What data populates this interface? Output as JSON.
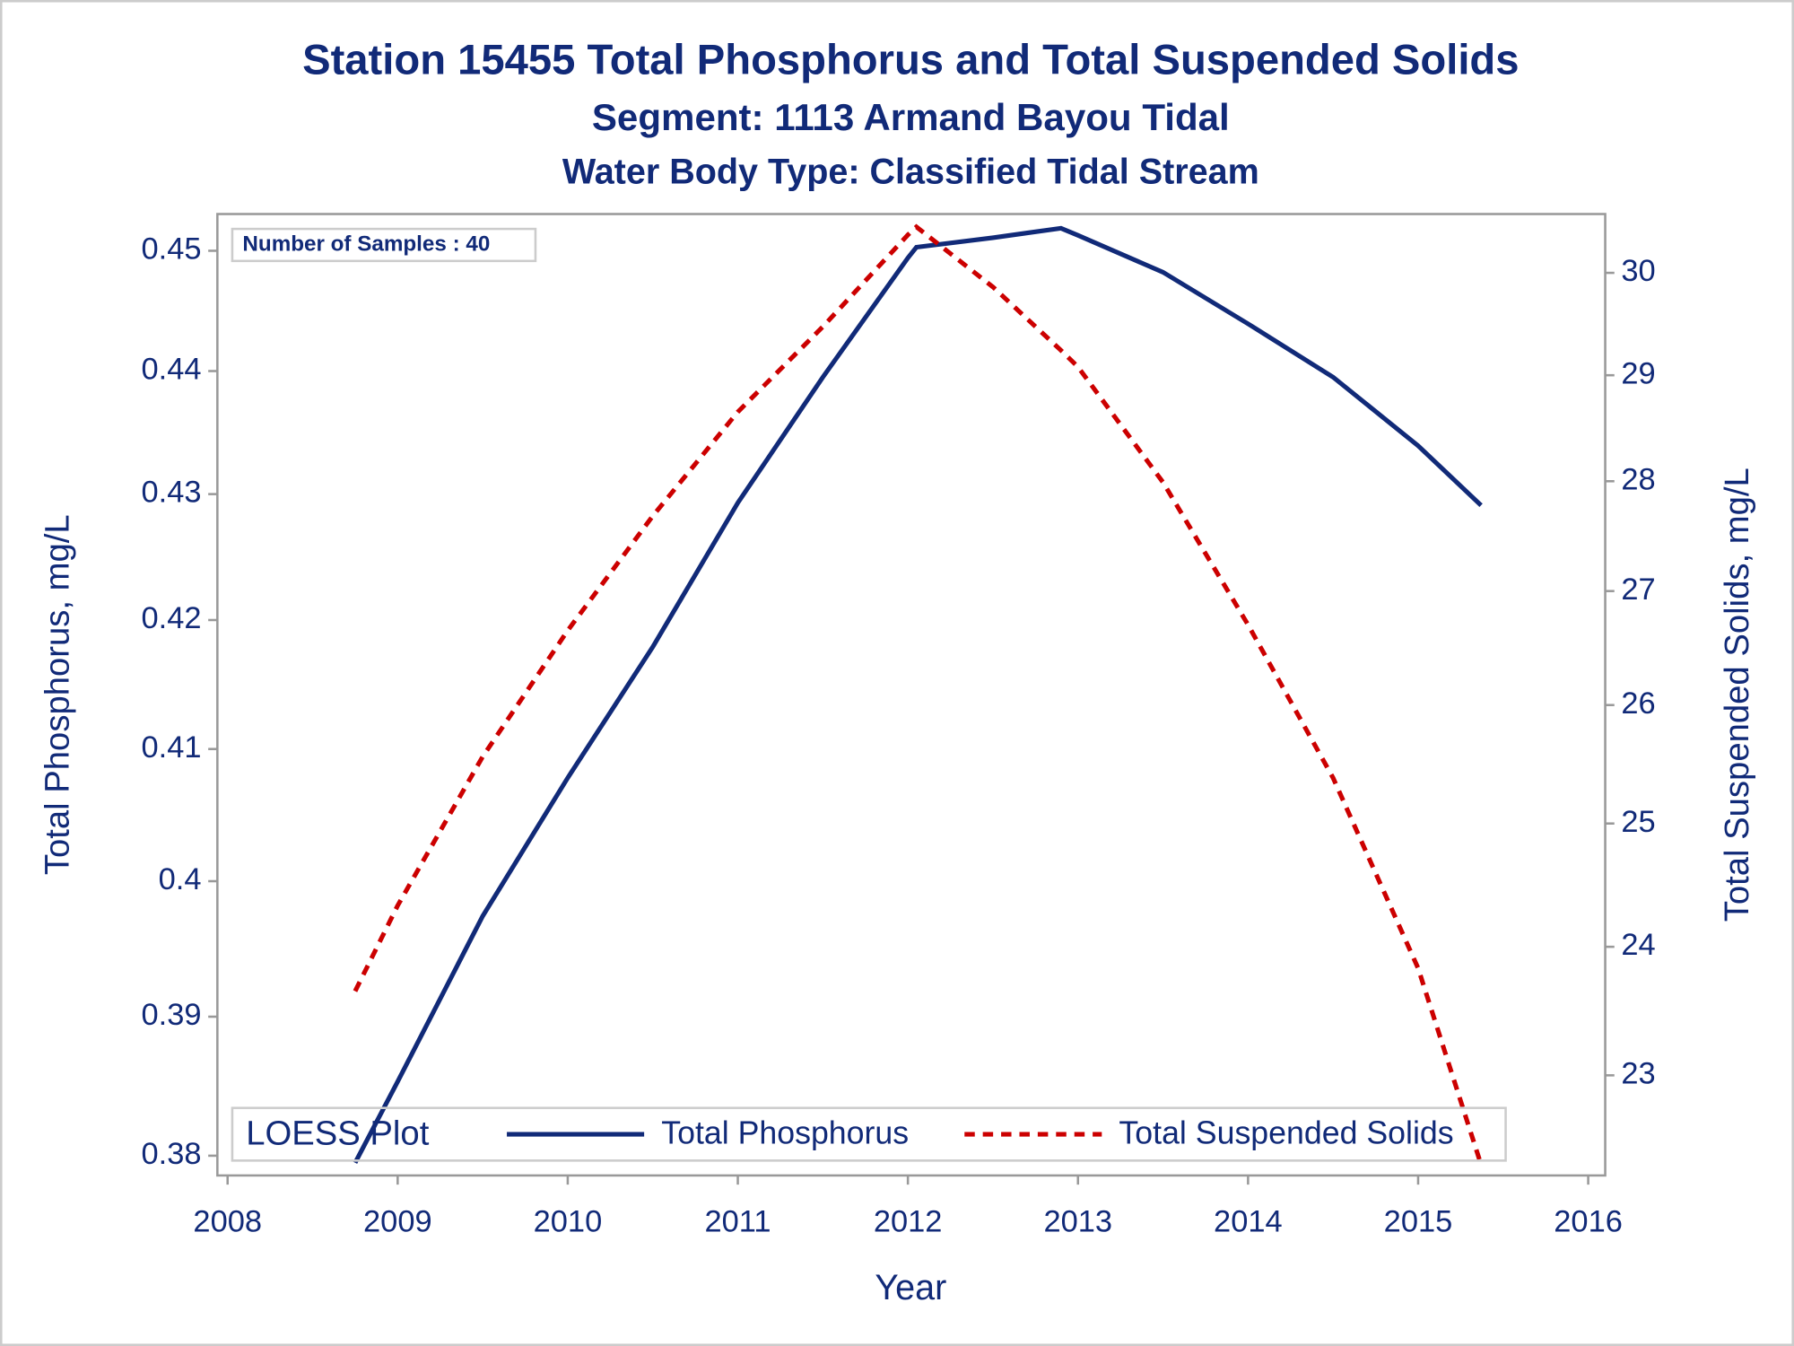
{
  "chart_data": {
    "type": "line",
    "title": "Station 15455  Total Phosphorus and Total Suspended Solids",
    "subtitle": "Segment: 1113  Armand Bayou Tidal",
    "subtitle2": "Water Body Type: Classified Tidal Stream",
    "annotation": "Number of Samples : 40",
    "legend_title": "LOESS Plot",
    "xlabel": "Year",
    "ylabel": "Total Phosphorus, mg/L",
    "y2label": "Total Suspended Solids, mg/L",
    "x": [
      2008.75,
      2009,
      2009.5,
      2010,
      2010.5,
      2011,
      2011.5,
      2012,
      2012.05,
      2012.5,
      2012.9,
      2013,
      2013.5,
      2014,
      2014.5,
      2015,
      2015.37
    ],
    "series": [
      {
        "name": "Total Phosphorus",
        "color": "#112a78",
        "dash": false,
        "values": [
          0.3795,
          0.3853,
          0.3974,
          0.4078,
          0.4179,
          0.4293,
          0.4395,
          0.4494,
          0.4503,
          0.4511,
          0.4519,
          0.4513,
          0.4482,
          0.4439,
          0.4395,
          0.4339,
          0.4291
        ]
      },
      {
        "name": "Total Suspended Solids",
        "color": "#cc0000",
        "dash": true,
        "axis": "y2",
        "values": [
          23.65,
          24.33,
          25.56,
          26.65,
          27.68,
          28.65,
          29.47,
          30.38,
          30.46,
          29.86,
          29.24,
          29.08,
          27.99,
          26.7,
          25.38,
          23.83,
          22.33
        ]
      }
    ],
    "xlim": [
      2007.94,
      2016.1
    ],
    "xticks": [
      2008,
      2009,
      2010,
      2011,
      2012,
      2013,
      2014,
      2015,
      2016
    ],
    "ylim": [
      0.3786,
      0.4531
    ],
    "yticks": [
      0.38,
      0.39,
      0.4,
      0.41,
      0.42,
      0.43,
      0.44,
      0.45
    ],
    "y2lim": [
      22.25,
      30.59
    ],
    "y2ticks": [
      23,
      24,
      25,
      26,
      27,
      28,
      29,
      30
    ],
    "log_y": true,
    "log_y2": true,
    "legend": "bottom"
  }
}
